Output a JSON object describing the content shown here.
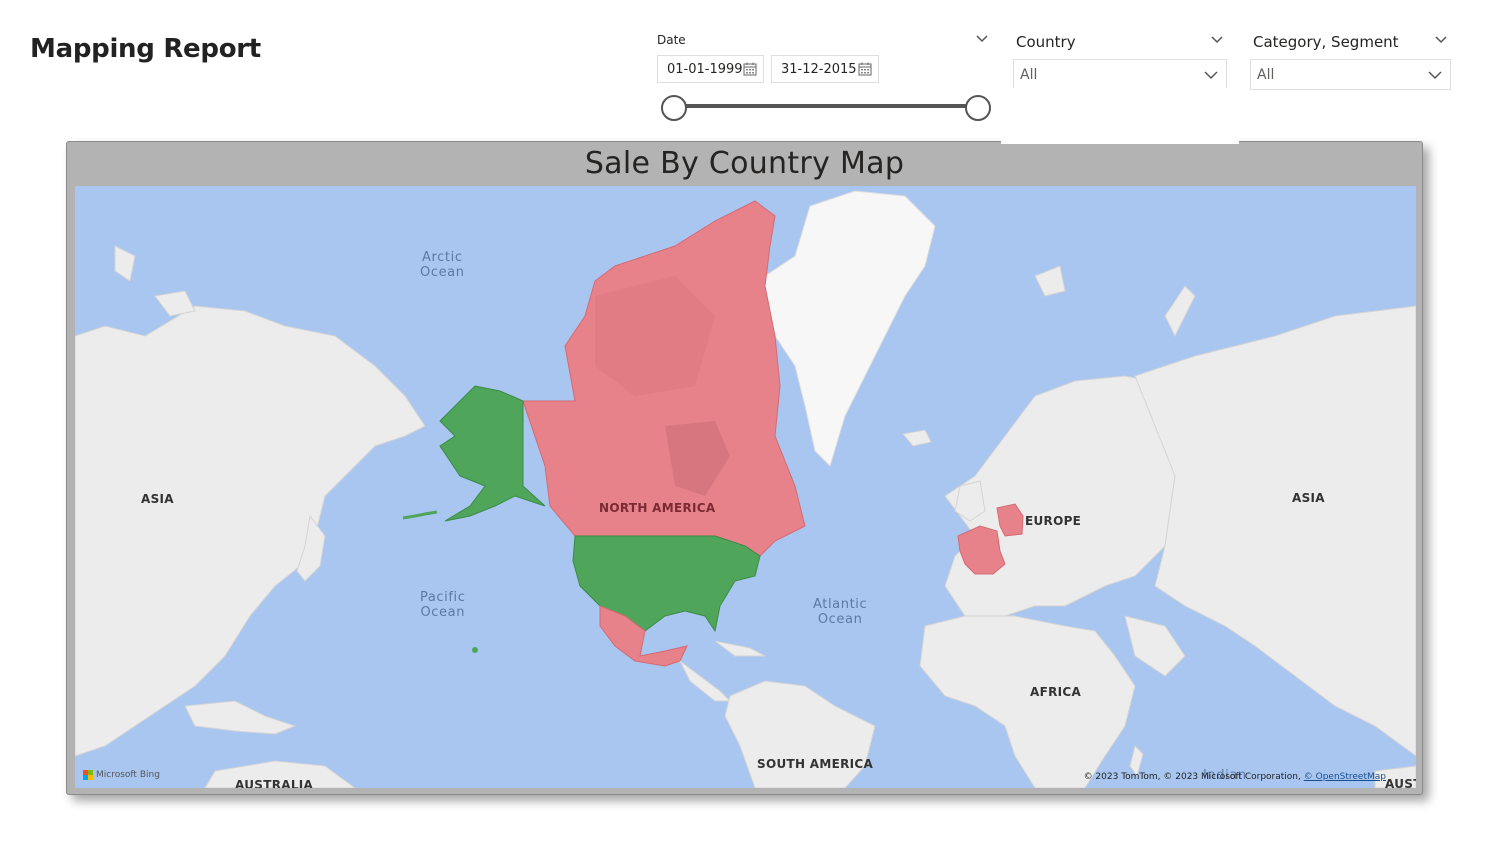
{
  "report": {
    "title": "Mapping Report"
  },
  "date_slicer": {
    "label": "Date",
    "start": "01-01-1999",
    "end": "31-12-2015",
    "range_start_fraction": 0,
    "range_end_fraction": 1
  },
  "country_slicer": {
    "label": "Country",
    "value": "All"
  },
  "category_slicer": {
    "label": "Category, Segment",
    "value": "All"
  },
  "map_visual": {
    "title": "Sale By Country Map",
    "continent_labels": {
      "asia_left": "ASIA",
      "asia_right": "ASIA",
      "north_america": "NORTH AMERICA",
      "europe": "EUROPE",
      "africa": "AFRICA",
      "south_america": "SOUTH AMERICA",
      "australia_left": "AUSTRALIA",
      "australia_right": "AUST"
    },
    "ocean_labels": {
      "arctic": [
        "Arctic",
        "Ocean"
      ],
      "pacific": [
        "Pacific",
        "Ocean"
      ],
      "atlantic": [
        "Atlantic",
        "Ocean"
      ],
      "indian": "Indian"
    },
    "attribution": "© 2023 TomTom, © 2023 Microsoft Corporation,",
    "attribution_link": "© OpenStreetMap",
    "bing_logo": "Microsoft Bing",
    "colors": {
      "ocean": "#a8c6f0",
      "land": "#ececec",
      "high": "#e8828a",
      "low": "#4fa65a"
    },
    "highlighted_countries": [
      {
        "country": "Canada",
        "status": "high",
        "color": "#e8828a"
      },
      {
        "country": "France",
        "status": "high",
        "color": "#e8828a"
      },
      {
        "country": "Germany",
        "status": "high",
        "color": "#e8828a"
      },
      {
        "country": "Mexico",
        "status": "high",
        "color": "#e8828a"
      },
      {
        "country": "United States",
        "status": "low",
        "color": "#4fa65a"
      }
    ]
  }
}
